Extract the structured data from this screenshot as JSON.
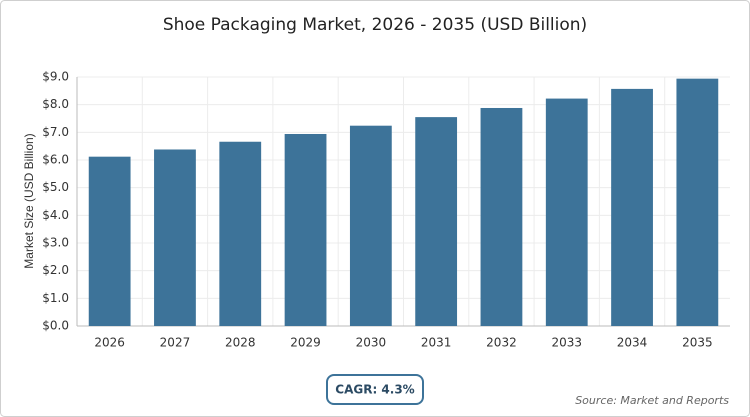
{
  "chart_data": {
    "type": "bar",
    "title": "Shoe Packaging Market, 2026 - 2035 (USD Billion)",
    "y_label": "Market Size (USD Billion)",
    "categories": [
      "2026",
      "2027",
      "2028",
      "2029",
      "2030",
      "2031",
      "2032",
      "2033",
      "2034",
      "2035"
    ],
    "values": [
      6.12,
      6.38,
      6.66,
      6.94,
      7.24,
      7.55,
      7.88,
      8.22,
      8.57,
      8.94
    ],
    "color": "#3d7399",
    "ylim": [
      0,
      9
    ],
    "yticks": [
      {
        "value": 0,
        "label": "$0.0"
      },
      {
        "value": 1,
        "label": "$1.0"
      },
      {
        "value": 2,
        "label": "$2.0"
      },
      {
        "value": 3,
        "label": "$3.0"
      },
      {
        "value": 4,
        "label": "$4.0"
      },
      {
        "value": 5,
        "label": "$5.0"
      },
      {
        "value": 6,
        "label": "$6.0"
      },
      {
        "value": 7,
        "label": "$7.0"
      },
      {
        "value": 8,
        "label": "$8.0"
      },
      {
        "value": 9,
        "label": "$9.0"
      }
    ],
    "grid": true,
    "cagr": "CAGR: 4.3%",
    "source": "Source: Market and Reports"
  }
}
